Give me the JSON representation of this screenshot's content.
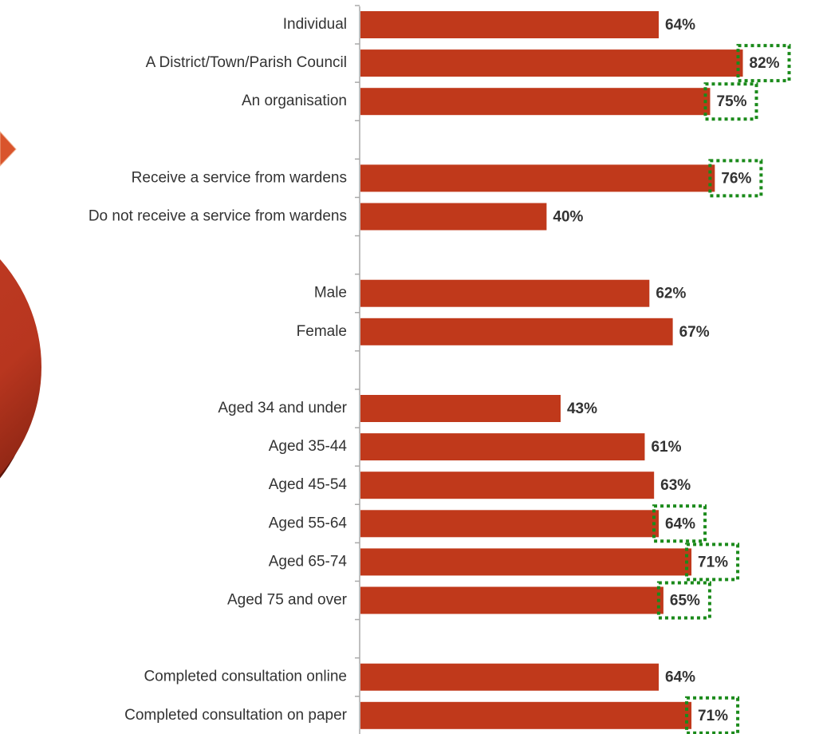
{
  "chart_data": {
    "type": "bar",
    "orientation": "horizontal",
    "categories": [
      "Individual",
      "A District/Town/Parish Council",
      "An organisation",
      null,
      "Receive a service from wardens",
      "Do not receive a service from wardens",
      null,
      "Male",
      "Female",
      null,
      "Aged 34 and under",
      "Aged 35-44",
      "Aged 45-54",
      "Aged 55-64",
      "Aged 65-74",
      "Aged 75 and over",
      null,
      "Completed consultation online",
      "Completed consultation on paper"
    ],
    "values": [
      64,
      82,
      75,
      null,
      76,
      40,
      null,
      62,
      67,
      null,
      43,
      61,
      63,
      64,
      71,
      65,
      null,
      64,
      71
    ],
    "value_labels": [
      "64%",
      "82%",
      "75%",
      null,
      "76%",
      "40%",
      null,
      "62%",
      "67%",
      null,
      "43%",
      "61%",
      "63%",
      "64%",
      "71%",
      "65%",
      null,
      "64%",
      "71%"
    ],
    "highlighted": [
      false,
      true,
      true,
      false,
      true,
      false,
      false,
      false,
      false,
      false,
      false,
      false,
      false,
      true,
      true,
      true,
      false,
      false,
      true
    ],
    "color": "#c0391b",
    "highlight_color": "#1a8a1a"
  }
}
